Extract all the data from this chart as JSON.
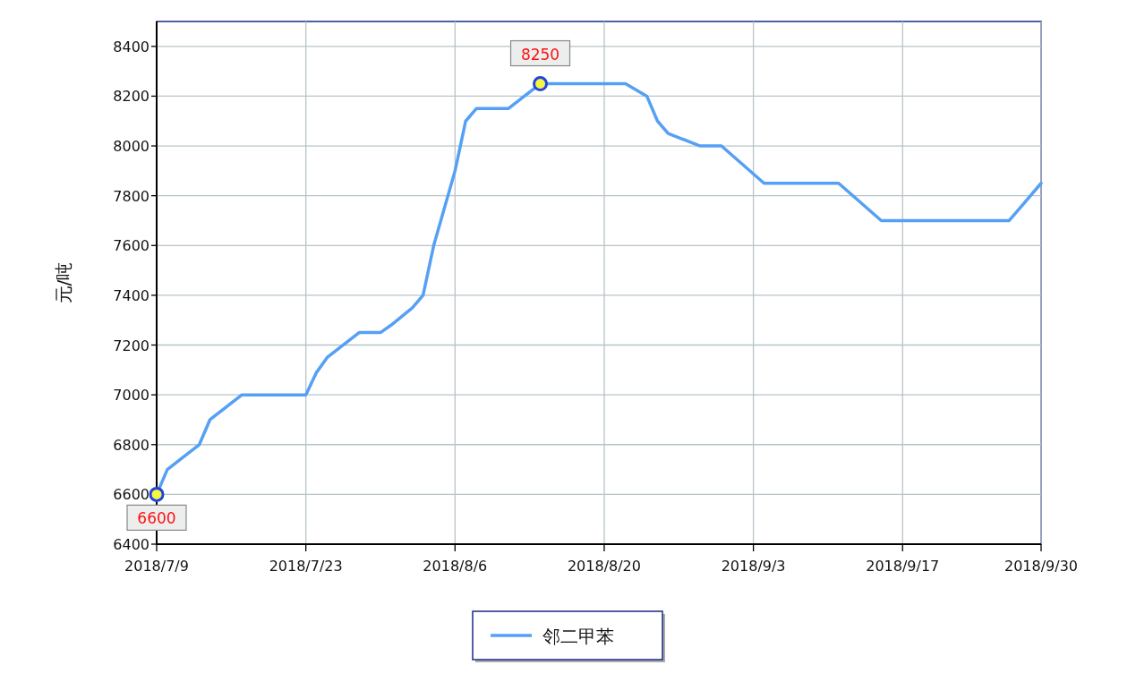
{
  "chart_data": {
    "type": "line",
    "ylabel": "元/吨",
    "x": [
      "2018-07-09",
      "2018-07-10",
      "2018-07-13",
      "2018-07-14",
      "2018-07-17",
      "2018-07-23",
      "2018-07-24",
      "2018-07-25",
      "2018-07-28",
      "2018-07-30",
      "2018-07-31",
      "2018-08-02",
      "2018-08-03",
      "2018-08-04",
      "2018-08-06",
      "2018-08-07",
      "2018-08-08",
      "2018-08-11",
      "2018-08-14",
      "2018-08-22",
      "2018-08-24",
      "2018-08-25",
      "2018-08-26",
      "2018-08-29",
      "2018-08-31",
      "2018-09-04",
      "2018-09-11",
      "2018-09-15",
      "2018-09-27",
      "2018-09-28",
      "2018-09-30"
    ],
    "series": [
      {
        "name": "邻二甲苯",
        "color": "#55a0f5",
        "values": [
          6600,
          6700,
          6800,
          6900,
          7000,
          7000,
          7090,
          7150,
          7250,
          7250,
          7280,
          7350,
          7400,
          7600,
          7900,
          8100,
          8150,
          8150,
          8250,
          8250,
          8200,
          8100,
          8050,
          8000,
          8000,
          7850,
          7850,
          7700,
          7700,
          7750,
          7850
        ]
      }
    ],
    "xlim": [
      "2018-07-09",
      "2018-09-30"
    ],
    "xticks": [
      {
        "value": "2018-07-09",
        "label": "2018/7/9"
      },
      {
        "value": "2018-07-23",
        "label": "2018/7/23"
      },
      {
        "value": "2018-08-06",
        "label": "2018/8/6"
      },
      {
        "value": "2018-08-20",
        "label": "2018/8/20"
      },
      {
        "value": "2018-09-03",
        "label": "2018/9/3"
      },
      {
        "value": "2018-09-17",
        "label": "2018/9/17"
      },
      {
        "value": "2018-09-30",
        "label": "2018/9/30"
      }
    ],
    "ylim": [
      6400,
      8500
    ],
    "yticks": [
      6400,
      6600,
      6800,
      7000,
      7200,
      7400,
      7600,
      7800,
      8000,
      8200,
      8400
    ],
    "annotations": [
      {
        "text": "8250",
        "x": "2018-08-14",
        "y": 8250
      },
      {
        "text": "6600",
        "x": "2018-07-09",
        "y": 6600
      }
    ],
    "grid": true,
    "legend": "bottom",
    "line_style": "solid"
  }
}
